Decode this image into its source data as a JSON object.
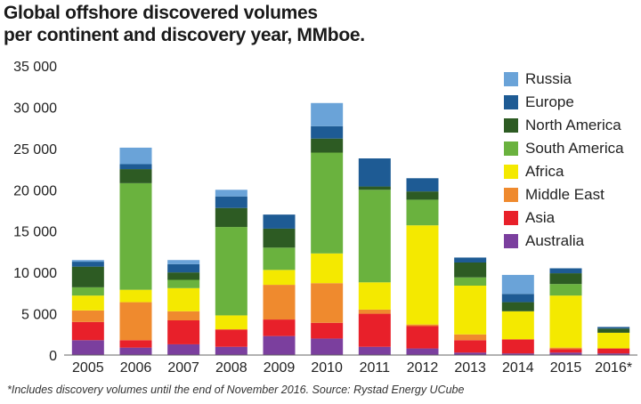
{
  "chart_data": {
    "type": "bar",
    "stacked": true,
    "title": [
      "Global offshore discovered volumes",
      "per continent and discovery year, MMboe."
    ],
    "categories": [
      "2005",
      "2006",
      "2007",
      "2008",
      "2009",
      "2010",
      "2011",
      "2012",
      "2013",
      "2014",
      "2015",
      "2016*"
    ],
    "ylim": [
      0,
      35000
    ],
    "yticks": [
      0,
      5000,
      10000,
      15000,
      20000,
      25000,
      30000,
      35000
    ],
    "ytick_labels": [
      "0",
      "5 000",
      "10 000",
      "15 000",
      "20 000",
      "25 000",
      "30 000",
      "35 000"
    ],
    "grid": false,
    "legend_position": "top-right",
    "series": [
      {
        "name": "Australia",
        "color": "#7b3f9e",
        "values": [
          1800,
          900,
          1300,
          1000,
          2300,
          2000,
          1000,
          800,
          300,
          200,
          300,
          200
        ]
      },
      {
        "name": "Asia",
        "color": "#e8202a",
        "values": [
          2200,
          900,
          2900,
          2100,
          2000,
          1900,
          4000,
          2700,
          1500,
          1700,
          400,
          600
        ]
      },
      {
        "name": "Middle East",
        "color": "#ef8a2e",
        "values": [
          1400,
          4600,
          1100,
          0,
          4200,
          4800,
          500,
          200,
          700,
          0,
          200,
          0
        ]
      },
      {
        "name": "Africa",
        "color": "#f4e900",
        "values": [
          1800,
          1500,
          2800,
          1700,
          1800,
          3600,
          3300,
          12000,
          5900,
          3400,
          6300,
          1900
        ]
      },
      {
        "name": "South America",
        "color": "#6ab23e",
        "values": [
          1000,
          12900,
          1000,
          10700,
          2700,
          12200,
          11200,
          3100,
          1000,
          0,
          1400,
          0
        ]
      },
      {
        "name": "North America",
        "color": "#2d5b23",
        "values": [
          2500,
          1700,
          900,
          2300,
          2300,
          1700,
          400,
          1000,
          1800,
          1100,
          1300,
          500
        ]
      },
      {
        "name": "Europe",
        "color": "#1e5b94",
        "values": [
          600,
          600,
          1000,
          1400,
          1700,
          1500,
          3400,
          1600,
          600,
          1000,
          600,
          200
        ]
      },
      {
        "name": "Russia",
        "color": "#6aa3d8",
        "values": [
          200,
          2000,
          500,
          800,
          0,
          2800,
          0,
          0,
          0,
          2300,
          0,
          0
        ]
      }
    ],
    "legend_order": [
      "Russia",
      "Europe",
      "North America",
      "South America",
      "Africa",
      "Middle East",
      "Asia",
      "Australia"
    ],
    "footnote": "*Includes discovery volumes until the end of November 2016. Source: Rystad Energy UCube"
  }
}
